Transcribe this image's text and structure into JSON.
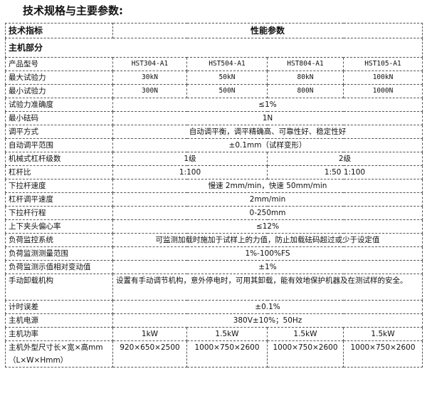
{
  "title": "技术规格与主要参数:",
  "header": {
    "col1": "技术指标",
    "col2": "性能参数"
  },
  "section": "主机部分",
  "rows4": [
    {
      "label": "产品型号",
      "values": [
        "HST304-A1",
        "HST504-A1",
        "HST804-A1",
        "HST105-A1"
      ]
    },
    {
      "label": "最大试验力",
      "values": [
        "30kN",
        "50kN",
        "80kN",
        "100kN"
      ]
    },
    {
      "label": "最小试验力",
      "values": [
        "300N",
        "500N",
        "800N",
        "1000N"
      ]
    }
  ],
  "rows_a": [
    {
      "label": "试验力准确度",
      "value": "≤1%"
    },
    {
      "label": "最小砝码",
      "value": "1N"
    },
    {
      "label": "调平方式",
      "value": "自动调平衡，调平精确高、可靠性好、稳定性好"
    },
    {
      "label": "自动调平范围",
      "value": "±0.1mm（试样变形）"
    }
  ],
  "rows2": [
    {
      "label": "机械式杠杆级数",
      "values": [
        "1级",
        "2级"
      ]
    },
    {
      "label": "杠杆比",
      "values": [
        "1:100",
        "1:50    1:100"
      ]
    }
  ],
  "rows_b": [
    {
      "label": "下拉杆速度",
      "value": "慢速 2mm/min，快速 50mm/min"
    },
    {
      "label": "杠杆调平速度",
      "value": "2mm/min"
    },
    {
      "label": "下拉杆行程",
      "value": "0-250mm"
    },
    {
      "label": "上下夹头偏心率",
      "value": "≤12%"
    },
    {
      "label": "负荷监控系统",
      "value": "可监测加载时施加于试样上的力值，防止加载砝码超过或少于设定值"
    },
    {
      "label": "负荷监测测量范围",
      "value": "1%-100%FS"
    },
    {
      "label": "负荷监测示值相对变动值",
      "value": "±1%"
    }
  ],
  "manual": {
    "label": "手动卸载机构",
    "value": "设置有手动调节机构，意外停电时，可用其卸载，能有效地保护机器及在测试样的安全。"
  },
  "rows_c": [
    {
      "label": "计时误差",
      "value": "±0.1%"
    },
    {
      "label": "主机电源",
      "value": "380V±10%；50Hz"
    }
  ],
  "power": {
    "label": "主机功率",
    "values": [
      "1kW",
      "1.5kW",
      "1.5kW",
      "1.5kW"
    ]
  },
  "dims": {
    "label": "主机外型尺寸长×宽×高mm（L×W×Hmm）",
    "values": [
      "920×650×2500",
      "1000×750×2600",
      "1000×750×2600",
      "1000×750×2600"
    ]
  }
}
